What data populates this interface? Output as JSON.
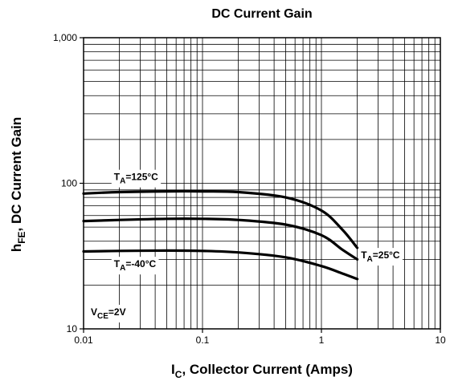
{
  "chart_data": {
    "type": "line",
    "title": "DC Current Gain",
    "xlabel": {
      "main": "I",
      "sub": "C",
      "rest": ", Collector Current (Amps)"
    },
    "ylabel": {
      "main": "h",
      "sub": "FE",
      "rest": ", DC Current Gain"
    },
    "x_scale": "log",
    "y_scale": "log",
    "xlim": [
      0.01,
      10
    ],
    "ylim": [
      10,
      1000
    ],
    "x_ticks": [
      {
        "value": 0.01,
        "label": "0.01"
      },
      {
        "value": 0.1,
        "label": "0.1"
      },
      {
        "value": 1,
        "label": "1"
      },
      {
        "value": 10,
        "label": "10"
      }
    ],
    "y_ticks": [
      {
        "value": 10,
        "label": "10"
      },
      {
        "value": 100,
        "label": "100"
      },
      {
        "value": 1000,
        "label": "1,000"
      }
    ],
    "grid": true,
    "series": [
      {
        "name": "TA=125°C",
        "x": [
          0.01,
          0.02,
          0.05,
          0.1,
          0.2,
          0.5,
          1,
          1.5,
          2
        ],
        "y": [
          85,
          87,
          88,
          88,
          87,
          80,
          65,
          48,
          36
        ]
      },
      {
        "name": "TA=25°C",
        "x": [
          0.01,
          0.02,
          0.05,
          0.1,
          0.2,
          0.5,
          1,
          1.5,
          2
        ],
        "y": [
          55,
          56,
          57,
          57,
          56,
          52,
          44,
          35,
          30
        ]
      },
      {
        "name": "TA=-40°C",
        "x": [
          0.01,
          0.02,
          0.05,
          0.1,
          0.2,
          0.5,
          1,
          1.5,
          2
        ],
        "y": [
          34,
          34.3,
          34.5,
          34.3,
          33.5,
          31,
          27,
          24,
          22
        ]
      }
    ],
    "annotations": [
      {
        "series": "TA=125°C",
        "main": "T",
        "sub": "A",
        "rest": "=125°C"
      },
      {
        "series": "TA=25°C",
        "main": "T",
        "sub": "A",
        "rest": "=25°C"
      },
      {
        "series": "TA=-40°C",
        "main": "T",
        "sub": "A",
        "rest": "=-40°C"
      },
      {
        "series": "",
        "main": "V",
        "sub": "CE",
        "rest": "=2V"
      }
    ]
  }
}
